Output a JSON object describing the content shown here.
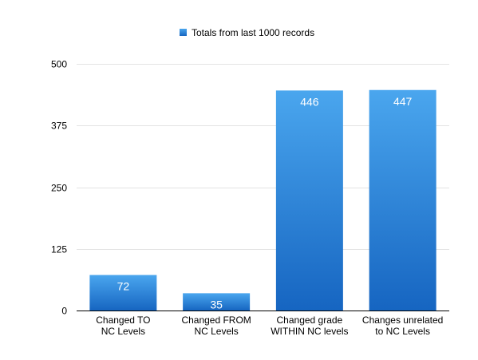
{
  "chart_data": {
    "type": "bar",
    "title": "",
    "xlabel": "",
    "ylabel": "",
    "categories": [
      [
        "Changed TO",
        "NC Levels"
      ],
      [
        "Changed FROM",
        "NC Levels"
      ],
      [
        "Changed grade",
        "WITHIN NC levels"
      ],
      [
        "Changes unrelated",
        "to NC Levels"
      ]
    ],
    "series": [
      {
        "name": "Totals from last 1000 records",
        "values": [
          72,
          35,
          446,
          447
        ],
        "color": "#2f83d6"
      }
    ],
    "ylim": [
      0,
      500
    ],
    "yticks": [
      0,
      125,
      250,
      375,
      500
    ],
    "grid": true,
    "legend_position": "top-center",
    "colors": {
      "bar_top": "#4aa6ee",
      "bar_bottom": "#1665c1",
      "grid": "#e3e3e3",
      "axis": "#000000",
      "data_label": "#ffffff"
    }
  }
}
